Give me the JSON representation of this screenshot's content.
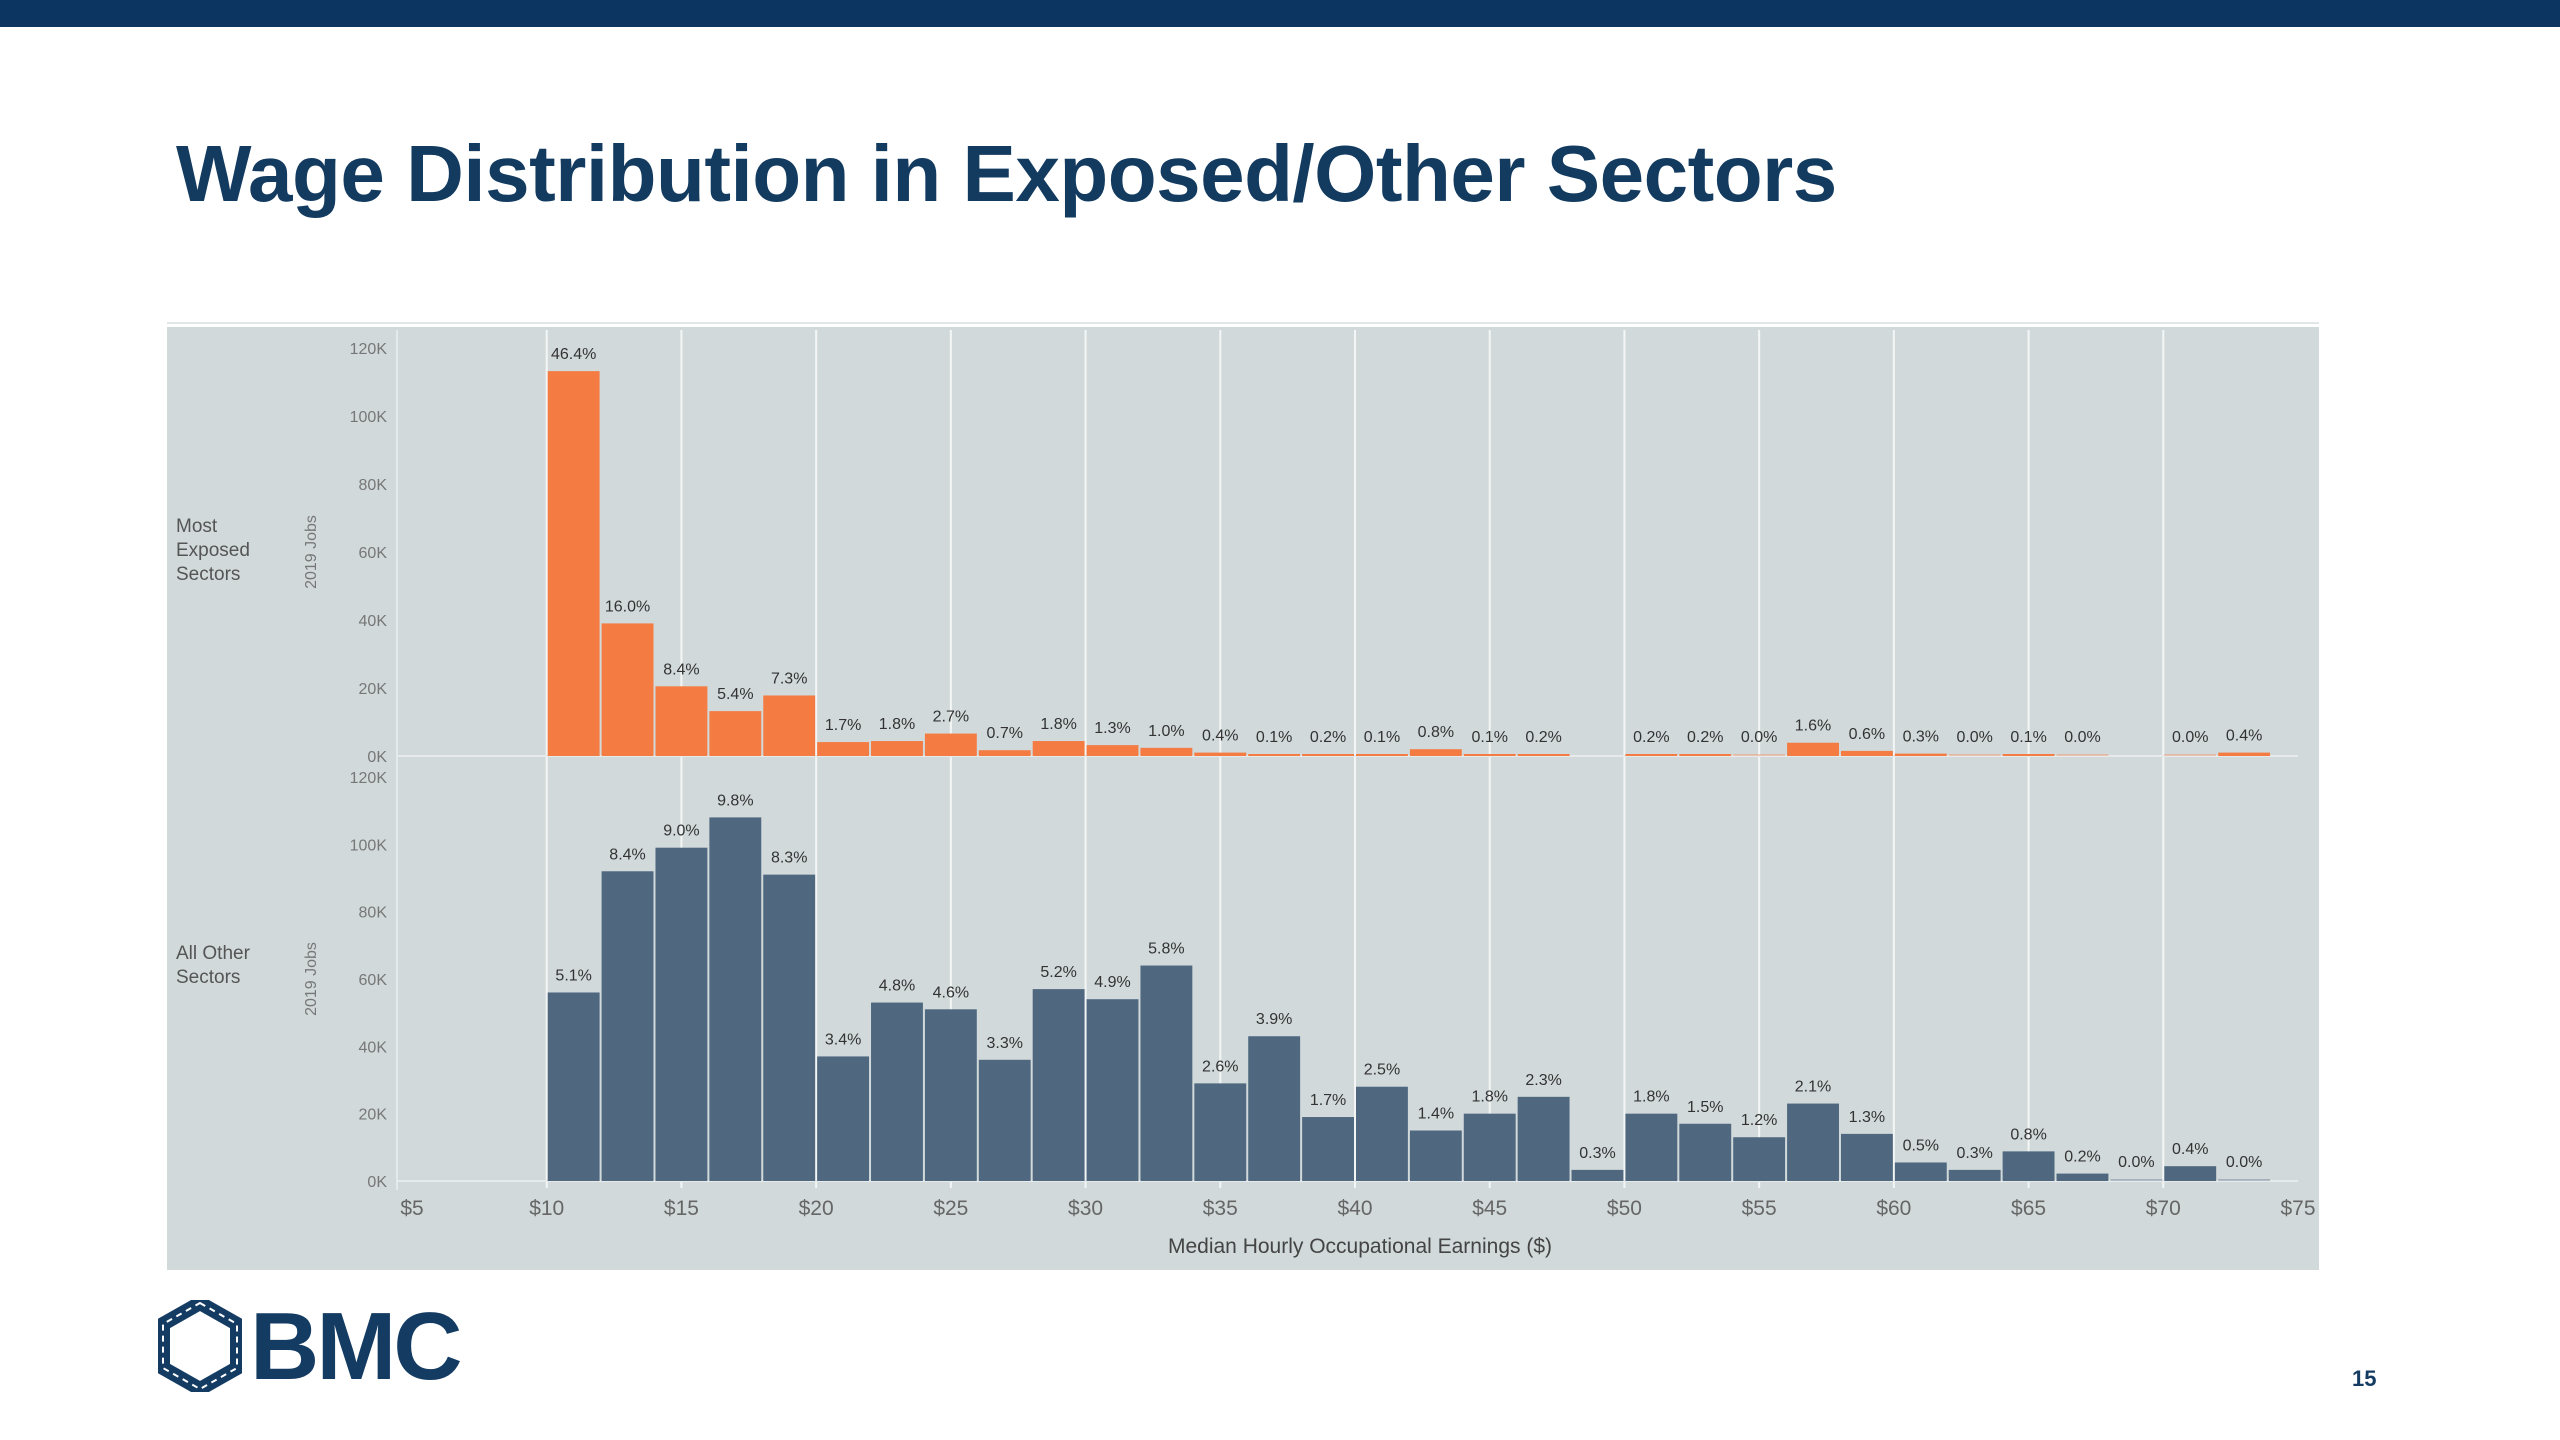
{
  "slide": {
    "title": "Wage Distribution in Exposed/Other Sectors",
    "page_number": "15",
    "logo_text": "BMC",
    "colors": {
      "header_bar": "#0c3561",
      "title": "#133b60",
      "panel_bg": "#d1d9da",
      "exposed": "#f47c42",
      "other": "#4f6880"
    }
  },
  "chart_data": {
    "type": "bar",
    "xlabel": "Median Hourly Occupational Earnings ($)",
    "x_ticks": [
      "$5",
      "$10",
      "$15",
      "$20",
      "$25",
      "$30",
      "$35",
      "$40",
      "$45",
      "$50",
      "$55",
      "$60",
      "$65",
      "$70",
      "$75"
    ],
    "x_tick_values": [
      5,
      10,
      15,
      20,
      25,
      30,
      35,
      40,
      45,
      50,
      55,
      60,
      65,
      70,
      75
    ],
    "xlim": [
      5,
      75
    ],
    "bin_width": 2,
    "bin_starts": [
      10,
      12,
      14,
      16,
      18,
      20,
      22,
      24,
      26,
      28,
      30,
      32,
      34,
      36,
      38,
      40,
      42,
      44,
      46,
      48,
      50,
      52,
      54,
      56,
      58,
      60,
      62,
      64,
      66,
      68,
      70,
      72
    ],
    "grid": "vertical",
    "panels": [
      {
        "row_label": "Most Exposed Sectors",
        "ylabel": "2019 Jobs",
        "ylim": [
          0,
          120000
        ],
        "y_ticks": [
          "0K",
          "20K",
          "40K",
          "60K",
          "80K",
          "100K",
          "120K"
        ],
        "y_tick_values": [
          0,
          20000,
          40000,
          60000,
          80000,
          100000,
          120000
        ],
        "color": "#f47c42",
        "values": [
          113200,
          39000,
          20500,
          13200,
          17800,
          4100,
          4400,
          6600,
          1700,
          4400,
          3200,
          2400,
          1000,
          200,
          500,
          200,
          2000,
          200,
          500,
          null,
          500,
          500,
          0,
          3900,
          1500,
          700,
          0,
          200,
          0,
          null,
          0,
          1000
        ],
        "labels": [
          "46.4%",
          "16.0%",
          "8.4%",
          "5.4%",
          "7.3%",
          "1.7%",
          "1.8%",
          "2.7%",
          "0.7%",
          "1.8%",
          "1.3%",
          "1.0%",
          "0.4%",
          "0.1%",
          "0.2%",
          "0.1%",
          "0.8%",
          "0.1%",
          "0.2%",
          null,
          "0.2%",
          "0.2%",
          "0.0%",
          "1.6%",
          "0.6%",
          "0.3%",
          "0.0%",
          "0.1%",
          "0.0%",
          null,
          "0.0%",
          "0.4%"
        ]
      },
      {
        "row_label": "All Other Sectors",
        "ylabel": "2019 Jobs",
        "ylim": [
          0,
          120000
        ],
        "y_ticks": [
          "0K",
          "20K",
          "40K",
          "60K",
          "80K",
          "100K",
          "120K"
        ],
        "y_tick_values": [
          0,
          20000,
          40000,
          60000,
          80000,
          100000,
          120000
        ],
        "color": "#4f6880",
        "values": [
          56000,
          92000,
          99000,
          108000,
          91000,
          37000,
          53000,
          51000,
          36000,
          57000,
          54000,
          64000,
          29000,
          43000,
          19000,
          28000,
          15000,
          20000,
          25000,
          3300,
          20000,
          17000,
          13000,
          23000,
          14000,
          5500,
          3300,
          8800,
          2200,
          0,
          4400,
          0
        ],
        "labels": [
          "5.1%",
          "8.4%",
          "9.0%",
          "9.8%",
          "8.3%",
          "3.4%",
          "4.8%",
          "4.6%",
          "3.3%",
          "5.2%",
          "4.9%",
          "5.8%",
          "2.6%",
          "3.9%",
          "1.7%",
          "2.5%",
          "1.4%",
          "1.8%",
          "2.3%",
          "0.3%",
          "1.8%",
          "1.5%",
          "1.2%",
          "2.1%",
          "1.3%",
          "0.5%",
          "0.3%",
          "0.8%",
          "0.2%",
          "0.0%",
          "0.4%",
          "0.0%"
        ]
      }
    ]
  }
}
